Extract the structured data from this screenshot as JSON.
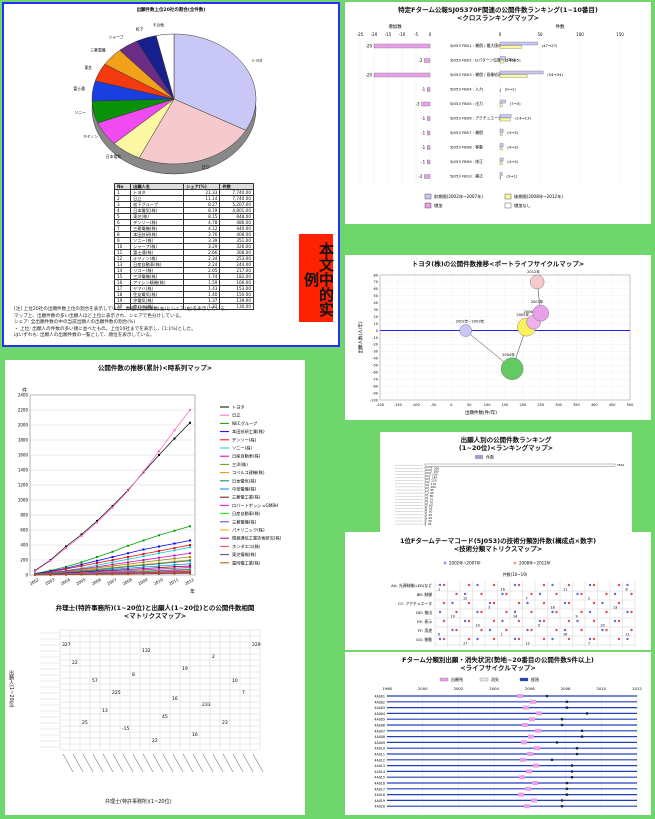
{
  "pie": {
    "title": "出願件数上位20社の割合(全件数)",
    "slices": [
      {
        "label": "トヨタ",
        "pct": 33.0,
        "color": "#c9c7f5"
      },
      {
        "label": "日立",
        "pct": 24.0,
        "color": "#f6c9cc"
      },
      {
        "label": "日本電気",
        "pct": 6.0,
        "color": "#fbf7a3"
      },
      {
        "label": "キヤノン",
        "pct": 6.0,
        "color": "#f04bf0"
      },
      {
        "label": "ソニー",
        "pct": 5.5,
        "color": "#0a910a"
      },
      {
        "label": "富士通",
        "pct": 5.0,
        "color": "#1a3fe0"
      },
      {
        "label": "東芝",
        "pct": 4.5,
        "color": "#f53a0f"
      },
      {
        "label": "三菱電機",
        "pct": 4.5,
        "color": "#f2a21a"
      },
      {
        "label": "シャープ",
        "pct": 4.0,
        "color": "#6b2c86"
      },
      {
        "label": "松下",
        "pct": 4.0,
        "color": "#171f8c"
      },
      {
        "label": "その他",
        "pct": 3.5,
        "color": "#ffffff"
      }
    ],
    "outer_labels": [
      "トヨタ",
      "日立",
      "日本電気",
      "キヤノン",
      "ソニー",
      "富士通",
      "東芝",
      "三菱電機",
      "シャープ",
      "松下"
    ]
  },
  "table": {
    "headers": [
      "No",
      "出願人名",
      "シェア(%)",
      "件数"
    ],
    "rows": [
      [
        "1",
        "トヨタ",
        "21.33",
        "7,740.00"
      ],
      [
        "2",
        "日立",
        "11.14",
        "7,740.00"
      ],
      [
        "3",
        "松下グループ",
        "8.27",
        "5,207.00"
      ],
      [
        "4",
        "日本電気(株)",
        "8.19",
        "4,801.00"
      ],
      [
        "5",
        "東芝(株)",
        "8.15",
        "848.00"
      ],
      [
        "6",
        "デンソー(株)",
        "4.78",
        "486.00"
      ],
      [
        "7",
        "三菱電機(株)",
        "4.12",
        "440.00"
      ],
      [
        "8",
        "本田技研(株)",
        "3.76",
        "408.00"
      ],
      [
        "9",
        "ソニー(株)",
        "3.39",
        "351.00"
      ],
      [
        "10",
        "シャープ(株)",
        "3.29",
        "326.00"
      ],
      [
        "11",
        "富士通(株)",
        "2.66",
        "308.00"
      ],
      [
        "12",
        "キヤノン(株)",
        "2.34",
        "253.00"
      ],
      [
        "13",
        "日産自動車(株)",
        "2.24",
        "244.00"
      ],
      [
        "14",
        "リコー(株)",
        "2.05",
        "217.00"
      ],
      [
        "15",
        "三洋電機(株)",
        "1.74",
        "182.00"
      ],
      [
        "16",
        "アイシン精機(株)",
        "1.59",
        "166.00"
      ],
      [
        "17",
        "ヤマハ(株)",
        "1.43",
        "153.00"
      ],
      [
        "18",
        "住友電気(株)",
        "1.40",
        "150.00"
      ],
      [
        "19",
        "沖電気(株)",
        "1.37",
        "139.00"
      ],
      [
        "20",
        "京セラ(株)",
        "1.22",
        "130.00"
      ]
    ],
    "notes": [
      "[注]  上位20社の出願件数上位の割合を表示している。数値は出願件数(左)とシェア(右)を表示している。",
      "マップ上、出願件数の多い出願人ほど上位に表示され、シェアで色分けしている。",
      "シェア: 全出願件数の中の当該出願人の出願件数の割合(%)",
      "・ 上位: 出願人の件数の多い順に並べたもの。上位10社までを表示し、[1:1%]とした。",
      "はいずれも: 出願人の出願件数の一覧として、順位を表示している。"
    ]
  },
  "stamp": "本文中的实例",
  "line_chart": {
    "title": "公開件数の推移(累計)<時系列マップ>",
    "yaxis_label": "件",
    "xaxis_label": "年",
    "ylim": [
      0,
      2400
    ],
    "ytick_values": [
      0,
      200,
      400,
      600,
      800,
      1000,
      1200,
      1400,
      1600,
      1800,
      2000,
      2200,
      2400
    ],
    "categories": [
      "2002",
      "2003",
      "2004",
      "2005",
      "2006",
      "2007",
      "2008",
      "2009",
      "2010",
      "2011",
      "2012"
    ],
    "series": [
      {
        "name": "トヨタ",
        "color": "#000000",
        "values": [
          60,
          200,
          380,
          540,
          720,
          920,
          1130,
          1370,
          1600,
          1820,
          2030
        ]
      },
      {
        "name": "日立",
        "color": "#ff66cc",
        "values": [
          50,
          190,
          360,
          520,
          700,
          900,
          1120,
          1380,
          1650,
          1930,
          2200
        ]
      },
      {
        "name": "NECグループ",
        "color": "#00a000",
        "values": [
          20,
          60,
          110,
          170,
          240,
          310,
          390,
          460,
          530,
          590,
          650
        ]
      },
      {
        "name": "本田技研工業(株)",
        "color": "#0000ff",
        "values": [
          15,
          50,
          90,
          140,
          190,
          240,
          290,
          340,
          380,
          420,
          460
        ]
      },
      {
        "name": "デンソー(株)",
        "color": "#ff0000",
        "values": [
          10,
          40,
          80,
          120,
          160,
          200,
          240,
          280,
          320,
          360,
          400
        ]
      },
      {
        "name": "ソニー(株)",
        "color": "#00cccc",
        "values": [
          10,
          30,
          60,
          90,
          130,
          170,
          210,
          250,
          290,
          330,
          370
        ]
      },
      {
        "name": "日産自動車(株)",
        "color": "#cc00cc",
        "values": [
          10,
          30,
          55,
          80,
          110,
          140,
          170,
          200,
          230,
          260,
          290
        ]
      },
      {
        "name": "三洋(株)",
        "color": "#888800",
        "values": [
          8,
          25,
          45,
          70,
          95,
          120,
          145,
          170,
          195,
          220,
          240
        ]
      },
      {
        "name": "コベルコ建機(株)",
        "color": "#ff8800",
        "values": [
          5,
          20,
          40,
          60,
          80,
          100,
          120,
          140,
          160,
          180,
          200
        ]
      },
      {
        "name": "日本電気(株)",
        "color": "#008080",
        "values": [
          5,
          18,
          35,
          50,
          70,
          90,
          110,
          130,
          150,
          170,
          190
        ]
      },
      {
        "name": "中部電機(株)",
        "color": "#0088ff",
        "values": [
          5,
          15,
          30,
          45,
          60,
          75,
          90,
          105,
          120,
          135,
          150
        ]
      },
      {
        "name": "三菱電工業(株)",
        "color": "#800000",
        "values": [
          3,
          12,
          25,
          38,
          50,
          62,
          74,
          86,
          98,
          110,
          120
        ]
      },
      {
        "name": "ロバートボッシュGMBH",
        "color": "#ff00ff",
        "values": [
          3,
          10,
          20,
          30,
          40,
          50,
          60,
          70,
          80,
          90,
          100
        ]
      },
      {
        "name": "日産自動車(株)",
        "color": "#00ff00",
        "values": [
          2,
          8,
          16,
          24,
          32,
          40,
          48,
          56,
          64,
          72,
          80
        ]
      },
      {
        "name": "三菱電機(株)",
        "color": "#4040ff",
        "values": [
          2,
          7,
          14,
          21,
          28,
          35,
          42,
          49,
          56,
          63,
          70
        ]
      },
      {
        "name": "パナソニック(株)",
        "color": "#ffaa00",
        "values": [
          2,
          6,
          12,
          18,
          24,
          30,
          36,
          42,
          48,
          54,
          60
        ]
      },
      {
        "name": "情報通信工業技術研究(株)",
        "color": "#aa00aa",
        "values": [
          1,
          5,
          10,
          15,
          20,
          25,
          30,
          35,
          40,
          45,
          50
        ]
      },
      {
        "name": "ホンダエコ(株)",
        "color": "#ff4444",
        "values": [
          1,
          4,
          8,
          12,
          16,
          20,
          24,
          28,
          32,
          36,
          40
        ]
      },
      {
        "name": "東芝情報(株)",
        "color": "#4444aa",
        "values": [
          1,
          3,
          6,
          9,
          12,
          15,
          18,
          21,
          24,
          27,
          30
        ]
      },
      {
        "name": "富岡電工業(株)",
        "color": "#aa5500",
        "values": [
          1,
          2,
          4,
          6,
          8,
          10,
          12,
          14,
          16,
          18,
          20
        ]
      }
    ]
  },
  "matrix": {
    "title_line1": "弁理士(特許事務所)(1~20位)と出願人(1~20位)との公開件数相関",
    "title_line2": "<マトリクスマップ>",
    "ylabel": "出願人(1~20位)",
    "xlabel": "弁理士(特許事務所)(1~20位)"
  },
  "bar_rank": {
    "title_line1": "特定Fターム公報SJ05370F関連の公開件数ランキング(1~10番目)",
    "title_line2": "<クロスランキングマップ>",
    "left_header": "増加数",
    "right_header": "件数",
    "left_ticks": [
      "-25",
      "-20",
      "-15",
      "-10",
      "-5",
      "0"
    ],
    "right_ticks": [
      "0",
      "50",
      "100",
      "150"
    ],
    "rows": [
      {
        "label": "5J053 FB01 : 補償 / 最大値の設定",
        "d": -20,
        "a": 47,
        "b": 27,
        "num": "(47→27)"
      },
      {
        "label": "5J053 FB02 : Dパターン伝搬 / 効率化",
        "d": -2,
        "a": 7,
        "b": 5,
        "num": "(7→5)"
      },
      {
        "label": "5J053 FB03 : 補償 / 画像処理",
        "d": -20,
        "a": 54,
        "b": 34,
        "num": "(54→34)"
      },
      {
        "label": "5J053 FB04 : 入力",
        "d": -1,
        "a": 0,
        "b": 1,
        "num": "(0→1)"
      },
      {
        "label": "5J053 FB05 : 出力",
        "d": -3,
        "a": 7,
        "b": 3,
        "num": "(7→3)"
      },
      {
        "label": "5J053 FB06 : アクチュエータ",
        "d": -1,
        "a": 14,
        "b": 13,
        "num": "(14→13)"
      },
      {
        "label": "5J053 FB07 : 補償",
        "d": -1,
        "a": 4,
        "b": 3,
        "num": "(4→3)"
      },
      {
        "label": "5J053 FB08 : 移動",
        "d": -1,
        "a": 4,
        "b": 3,
        "num": "(4→3)"
      },
      {
        "label": "5J053 FB09 : 修正",
        "d": -1,
        "a": 4,
        "b": 3,
        "num": "(4→3)"
      },
      {
        "label": "5J053 FB10 : 補正",
        "d": -2,
        "a": 3,
        "b": 1,
        "num": "(3→1)"
      }
    ],
    "legend": [
      "前期間(2002年~2007年)",
      "後期間(2008年~2012年)",
      "増加",
      "増加なし"
    ]
  },
  "bubble": {
    "title": "トヨタ(株)の公開件数推移<ポートライフサイクルマップ>",
    "xlabel": "出願件数(件/年)",
    "ylabel": "出願人数(人/年)",
    "points": [
      {
        "label": "2002年~2003年",
        "x": 40,
        "y": 0,
        "r": 6,
        "color": "#c9c7f5"
      },
      {
        "label": "2004年",
        "x": 170,
        "y": -55,
        "r": 11,
        "color": "#63c963"
      },
      {
        "label": "2005年",
        "x": 210,
        "y": 5,
        "r": 9,
        "color": "#fbf35e"
      },
      {
        "label": "2006年",
        "x": 230,
        "y": 12,
        "r": 7,
        "color": "#f0b0f0"
      },
      {
        "label": "2007年",
        "x": 250,
        "y": 25,
        "r": 8,
        "color": "#e8a0e8"
      },
      {
        "label": "2012年",
        "x": 240,
        "y": 70,
        "r": 7,
        "color": "#f6c9cc"
      }
    ]
  },
  "hbar": {
    "title_line1": "出願人別の公開件数ランキング",
    "title_line2": "(1~20位)<ランキングマップ>",
    "legend": "件数",
    "values": [
      5500,
      200,
      180,
      150,
      140,
      120,
      110,
      100,
      95,
      90,
      80,
      75,
      70,
      60,
      55,
      50,
      45,
      40,
      30,
      25
    ]
  },
  "fmatrix": {
    "title_line1": "1位Fタームテーマコード(5J053)の技術分類別件数(構成点×数字)",
    "title_line2": "<技術分類マトリクスマップ>",
    "legend": [
      "2002年~2007年",
      "2008年~2012年"
    ],
    "header": "件数(10~19)",
    "rows": [
      "AA: 光源制御(LED)など",
      "BB: 制御",
      "CC: アクチュエータ",
      "DD: 検出",
      "EE: 表示",
      "FF: 用途",
      "GG: 移動"
    ]
  },
  "gantt": {
    "title_line1": "Fターム分類別出願・消失状況(勢地~20番目の公開件数5件以上)",
    "title_line2": "<ライフサイクルマップ>",
    "legend": [
      "出願残",
      "消失",
      "経過"
    ],
    "years": [
      "1998",
      "2000",
      "2002",
      "2004",
      "2006",
      "2008",
      "2010",
      "2012"
    ],
    "rows": [
      "4A001",
      "4A002",
      "4A003",
      "4A004",
      "4A005",
      "4A006",
      "4A007",
      "4A008",
      "4A009",
      "4A010",
      "4A011",
      "4A012",
      "4A013",
      "4A014",
      "4A015",
      "4A016",
      "4A017",
      "4A018",
      "4A019",
      "4A020"
    ]
  }
}
